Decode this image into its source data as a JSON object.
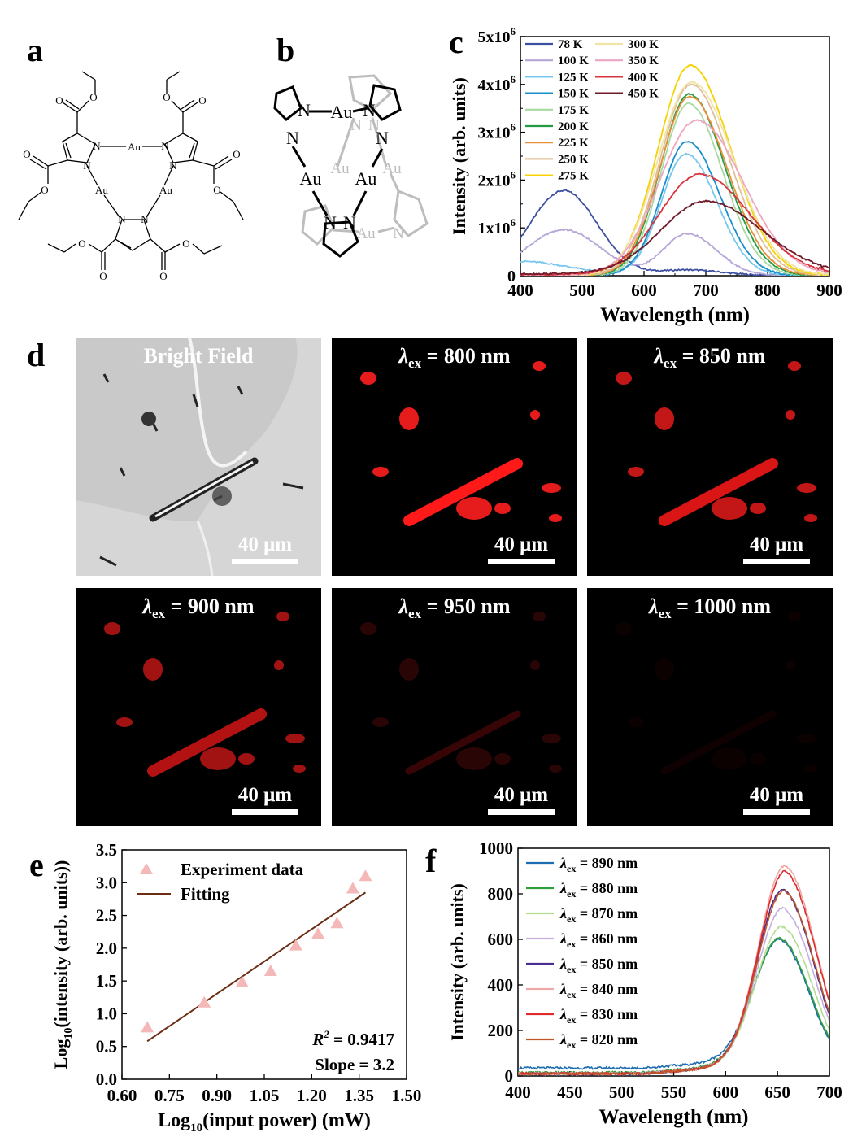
{
  "panel_labels": [
    "a",
    "b",
    "c",
    "d",
    "e",
    "f"
  ],
  "panel_a": {
    "atom_au": "Au",
    "atom_n": "N",
    "atom_o": "O"
  },
  "panel_b": {
    "atom_au": "Au",
    "atom_n": "N"
  },
  "chart_data": [
    {
      "id": "c",
      "type": "line",
      "xlabel": "Wavelength (nm)",
      "ylabel": "Intensity (arb. units)",
      "xlim": [
        400,
        900
      ],
      "ylim": [
        0,
        5000000
      ],
      "xticks": [
        "400",
        "500",
        "600",
        "700",
        "800",
        "900"
      ],
      "yticks": [
        {
          "v": 0,
          "label": "0"
        },
        {
          "v": 1000000,
          "label": "1x10",
          "sup": "6"
        },
        {
          "v": 2000000,
          "label": "2x10",
          "sup": "6"
        },
        {
          "v": 3000000,
          "label": "3x10",
          "sup": "6"
        },
        {
          "v": 4000000,
          "label": "4x10",
          "sup": "6"
        },
        {
          "v": 5000000,
          "label": "5x10",
          "sup": "6"
        }
      ],
      "legend": "top-left, two columns",
      "series": [
        {
          "name": "78 K",
          "color": "#3c4fa0",
          "peak": 670,
          "peak_value": 120000,
          "width": 45,
          "tail": 0,
          "second_peak": 470,
          "second_value": 1780000,
          "second_width": 55
        },
        {
          "name": "100 K",
          "color": "#b6a7d8",
          "peak": 670,
          "peak_value": 880000,
          "width": 38,
          "tail": 0,
          "second_peak": 470,
          "second_value": 960000,
          "second_width": 60
        },
        {
          "name": "125 K",
          "color": "#78c7ee",
          "peak": 668,
          "peak_value": 2550000,
          "width": 40,
          "tail": 0,
          "second_peak": 400,
          "second_value": 300000,
          "second_width": 80
        },
        {
          "name": "150 K",
          "color": "#1a8fcc",
          "peak": 670,
          "peak_value": 2800000,
          "width": 42,
          "tail": 0
        },
        {
          "name": "175 K",
          "color": "#a7d9a0",
          "peak": 672,
          "peak_value": 3600000,
          "width": 44,
          "tail": 0
        },
        {
          "name": "200 K",
          "color": "#239c43",
          "peak": 673,
          "peak_value": 3800000,
          "width": 46,
          "tail": 0
        },
        {
          "name": "225 K",
          "color": "#e8903a",
          "peak": 674,
          "peak_value": 3750000,
          "width": 48,
          "tail": 0
        },
        {
          "name": "250 K",
          "color": "#dfbf9a",
          "peak": 676,
          "peak_value": 4000000,
          "width": 50,
          "tail": 0
        },
        {
          "name": "275 K",
          "color": "#f5d200",
          "peak": 675,
          "peak_value": 4400000,
          "width": 52,
          "tail": 0
        },
        {
          "name": "300 K",
          "color": "#f2e4a6",
          "peak": 677,
          "peak_value": 4050000,
          "width": 54,
          "tail": 0
        },
        {
          "name": "350 K",
          "color": "#eda6c2",
          "peak": 685,
          "peak_value": 3250000,
          "width": 60,
          "tail": 0
        },
        {
          "name": "400 K",
          "color": "#d9343e",
          "peak": 690,
          "peak_value": 2100000,
          "width": 65,
          "tail": 20000
        },
        {
          "name": "450 K",
          "color": "#6e1a28",
          "peak": 700,
          "peak_value": 1520000,
          "width": 72,
          "tail": 40000
        }
      ]
    },
    {
      "id": "e",
      "type": "scatter",
      "xlabel": "Log10(input power) (mW)",
      "ylabel": "Log10(intensity (arb. units))",
      "xlim": [
        0.6,
        1.5
      ],
      "ylim": [
        0,
        3.5
      ],
      "xticks": [
        "0.60",
        "0.75",
        "0.90",
        "1.05",
        "1.20",
        "1.35",
        "1.50"
      ],
      "yticks": [
        "0.0",
        "0.5",
        "1.0",
        "1.5",
        "2.0",
        "2.5",
        "3.0",
        "3.5"
      ],
      "legend": "top-left",
      "points": [
        {
          "x": 0.68,
          "y": 0.79
        },
        {
          "x": 0.86,
          "y": 1.17
        },
        {
          "x": 0.98,
          "y": 1.48
        },
        {
          "x": 1.07,
          "y": 1.65
        },
        {
          "x": 1.15,
          "y": 2.04
        },
        {
          "x": 1.22,
          "y": 2.22
        },
        {
          "x": 1.28,
          "y": 2.38
        },
        {
          "x": 1.33,
          "y": 2.91
        },
        {
          "x": 1.37,
          "y": 3.1
        }
      ],
      "fit": {
        "x0": 0.68,
        "y0": 0.58,
        "x1": 1.37,
        "y1": 2.85
      },
      "series_names": [
        "Experiment data",
        "Fitting"
      ],
      "point_color": "#f4b8b8",
      "fit_color": "#6b2d14",
      "annotation_r2": "= 0.9417",
      "annotation_slope": "Slope = 3.2"
    },
    {
      "id": "f",
      "type": "line",
      "xlabel": "Wavelength (nm)",
      "ylabel": "Intensity (arb. units)",
      "xlim": [
        400,
        700
      ],
      "ylim": [
        0,
        1000
      ],
      "xticks": [
        "400",
        "450",
        "500",
        "550",
        "600",
        "650",
        "700"
      ],
      "yticks": [
        "0",
        "200",
        "400",
        "600",
        "800",
        "1000"
      ],
      "legend": "top-left",
      "series": [
        {
          "name": "= 890 nm",
          "color": "#1b6cb0",
          "peak": 652,
          "peak_value": 520,
          "width": 25,
          "base": 35
        },
        {
          "name": "= 880 nm",
          "color": "#2f9e3c",
          "peak": 652,
          "peak_value": 545,
          "width": 25,
          "base": 15
        },
        {
          "name": "= 870 nm",
          "color": "#b3dd93",
          "peak": 654,
          "peak_value": 600,
          "width": 25,
          "base": 10
        },
        {
          "name": "= 860 nm",
          "color": "#c6afe0",
          "peak": 655,
          "peak_value": 680,
          "width": 25,
          "base": 10
        },
        {
          "name": "= 850 nm",
          "color": "#4a2f8f",
          "peak": 655,
          "peak_value": 760,
          "width": 25,
          "base": 10
        },
        {
          "name": "= 840 nm",
          "color": "#f0a8a8",
          "peak": 657,
          "peak_value": 865,
          "width": 25,
          "base": 10
        },
        {
          "name": "= 830 nm",
          "color": "#de2b2b",
          "peak": 657,
          "peak_value": 840,
          "width": 25,
          "base": 10
        },
        {
          "name": "= 820 nm",
          "color": "#c0572a",
          "peak": 656,
          "peak_value": 755,
          "width": 25,
          "base": 10
        }
      ],
      "legend_prefix": "λ",
      "legend_sub": "ex"
    }
  ],
  "panel_d": {
    "symbol": "λ",
    "sub": "ex",
    "scale_label": "40 μm",
    "tiles": [
      {
        "title": "Bright Field",
        "kind": "bright"
      },
      {
        "title": "= 800 nm",
        "kind": "fluor",
        "intensity": 1.0
      },
      {
        "title": "= 850 nm",
        "kind": "fluor",
        "intensity": 0.85
      },
      {
        "title": "= 900 nm",
        "kind": "fluor",
        "intensity": 0.7
      },
      {
        "title": "= 950 nm",
        "kind": "fluor",
        "intensity": 0.18
      },
      {
        "title": "= 1000 nm",
        "kind": "fluor",
        "intensity": 0.05
      }
    ]
  }
}
